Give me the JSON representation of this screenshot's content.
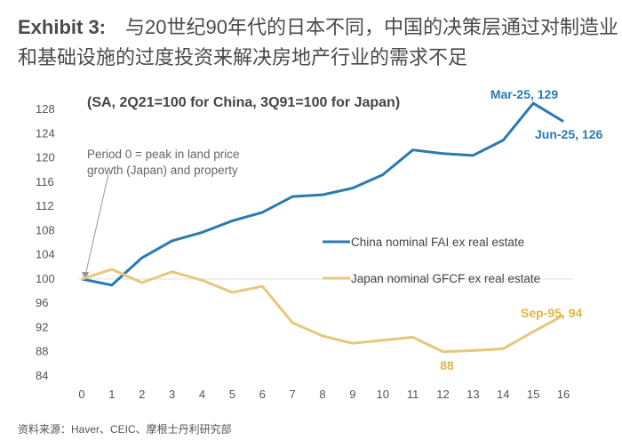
{
  "title": {
    "exhibit": "Exhibit 3:",
    "text": "与20世纪90年代的日本不同，中国的决策层通过对制造业和基础设施的过度投资来解决房地产行业的需求不足"
  },
  "source": "资料来源：Haver、CEIC、摩根士丹利研究部",
  "chart_data": {
    "type": "line",
    "subtitle": "(SA, 2Q21=100 for China, 3Q91=100 for Japan)",
    "x": [
      0,
      1,
      2,
      3,
      4,
      5,
      6,
      7,
      8,
      9,
      10,
      11,
      12,
      13,
      14,
      15,
      16
    ],
    "xlim": [
      0,
      16
    ],
    "ylim": [
      84,
      128
    ],
    "yticks": [
      84,
      88,
      92,
      96,
      100,
      104,
      108,
      112,
      116,
      120,
      124,
      128
    ],
    "grid": false,
    "reference_line": 100,
    "legend_placement": "center-right",
    "series": [
      {
        "name": "China nominal FAI ex real estate",
        "color": "#2a7ab0",
        "values": [
          100,
          99.0,
          103.5,
          106.3,
          107.7,
          109.6,
          111.0,
          113.6,
          113.9,
          115.0,
          117.2,
          121.3,
          120.7,
          120.4,
          122.9,
          129,
          126
        ]
      },
      {
        "name": "Japan nominal GFCF ex real estate",
        "color": "#e8c77a",
        "values": [
          100,
          101.6,
          99.4,
          101.2,
          99.8,
          97.8,
          98.8,
          92.8,
          90.6,
          89.4,
          89.9,
          90.4,
          88,
          88.2,
          88.5,
          91.3,
          94
        ]
      }
    ],
    "annotations": [
      {
        "text": "Mar-25, 129",
        "series": 0,
        "x": 15,
        "color": "#2a7ab0"
      },
      {
        "text": "Jun-25, 126",
        "series": 0,
        "x": 16,
        "color": "#2a7ab0"
      },
      {
        "text": "Sep-95, 94",
        "series": 1,
        "x": 16,
        "color": "#e0b54a"
      },
      {
        "text": "88",
        "series": 1,
        "x": 12,
        "color": "#e0b54a"
      },
      {
        "text": "Period 0 = peak in land price growth (Japan) and property",
        "lines": [
          "Period 0 = peak in land price",
          "growth (Japan) and property"
        ],
        "x": 0,
        "color": "#666666"
      }
    ]
  }
}
